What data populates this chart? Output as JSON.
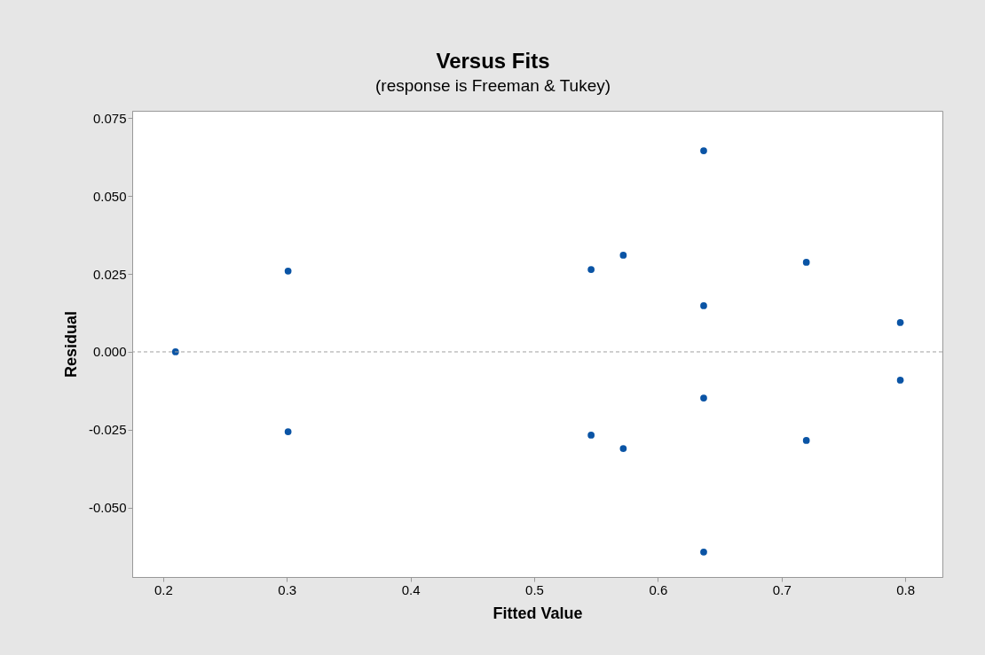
{
  "chart_data": {
    "type": "scatter",
    "title": "Versus Fits",
    "subtitle": "(response is Freeman & Tukey)",
    "xlabel": "Fitted Value",
    "ylabel": "Residual",
    "x": [
      0.21,
      0.301,
      0.301,
      0.546,
      0.546,
      0.572,
      0.572,
      0.637,
      0.637,
      0.637,
      0.637,
      0.72,
      0.72,
      0.796,
      0.796
    ],
    "series": [
      {
        "color": "#0a54a5",
        "values": [
          0.0,
          0.0259,
          -0.0256,
          0.0264,
          -0.0267,
          0.031,
          -0.031,
          0.0645,
          0.0148,
          -0.0148,
          -0.0642,
          0.0287,
          -0.0284,
          0.0094,
          -0.0091
        ]
      }
    ],
    "xlim": [
      0.175,
      0.83
    ],
    "xticks": [
      0.2,
      0.3,
      0.4,
      0.5,
      0.6,
      0.7,
      0.8
    ],
    "ylim": [
      -0.0722,
      0.0773
    ],
    "yticks": [
      {
        "value": -0.05,
        "label": "-0.050"
      },
      {
        "value": -0.025,
        "label": "-0.025"
      },
      {
        "value": 0,
        "label": "0.000"
      },
      {
        "value": 0.025,
        "label": "0.025"
      },
      {
        "value": 0.05,
        "label": "0.050"
      },
      {
        "value": 0.075,
        "label": "0.075"
      }
    ],
    "ref_lines": [
      {
        "axis": "y",
        "value": 0,
        "color": "#a0a0a0",
        "line_style": "dashed"
      }
    ],
    "marker": "circle",
    "grid": false,
    "legend": false
  }
}
